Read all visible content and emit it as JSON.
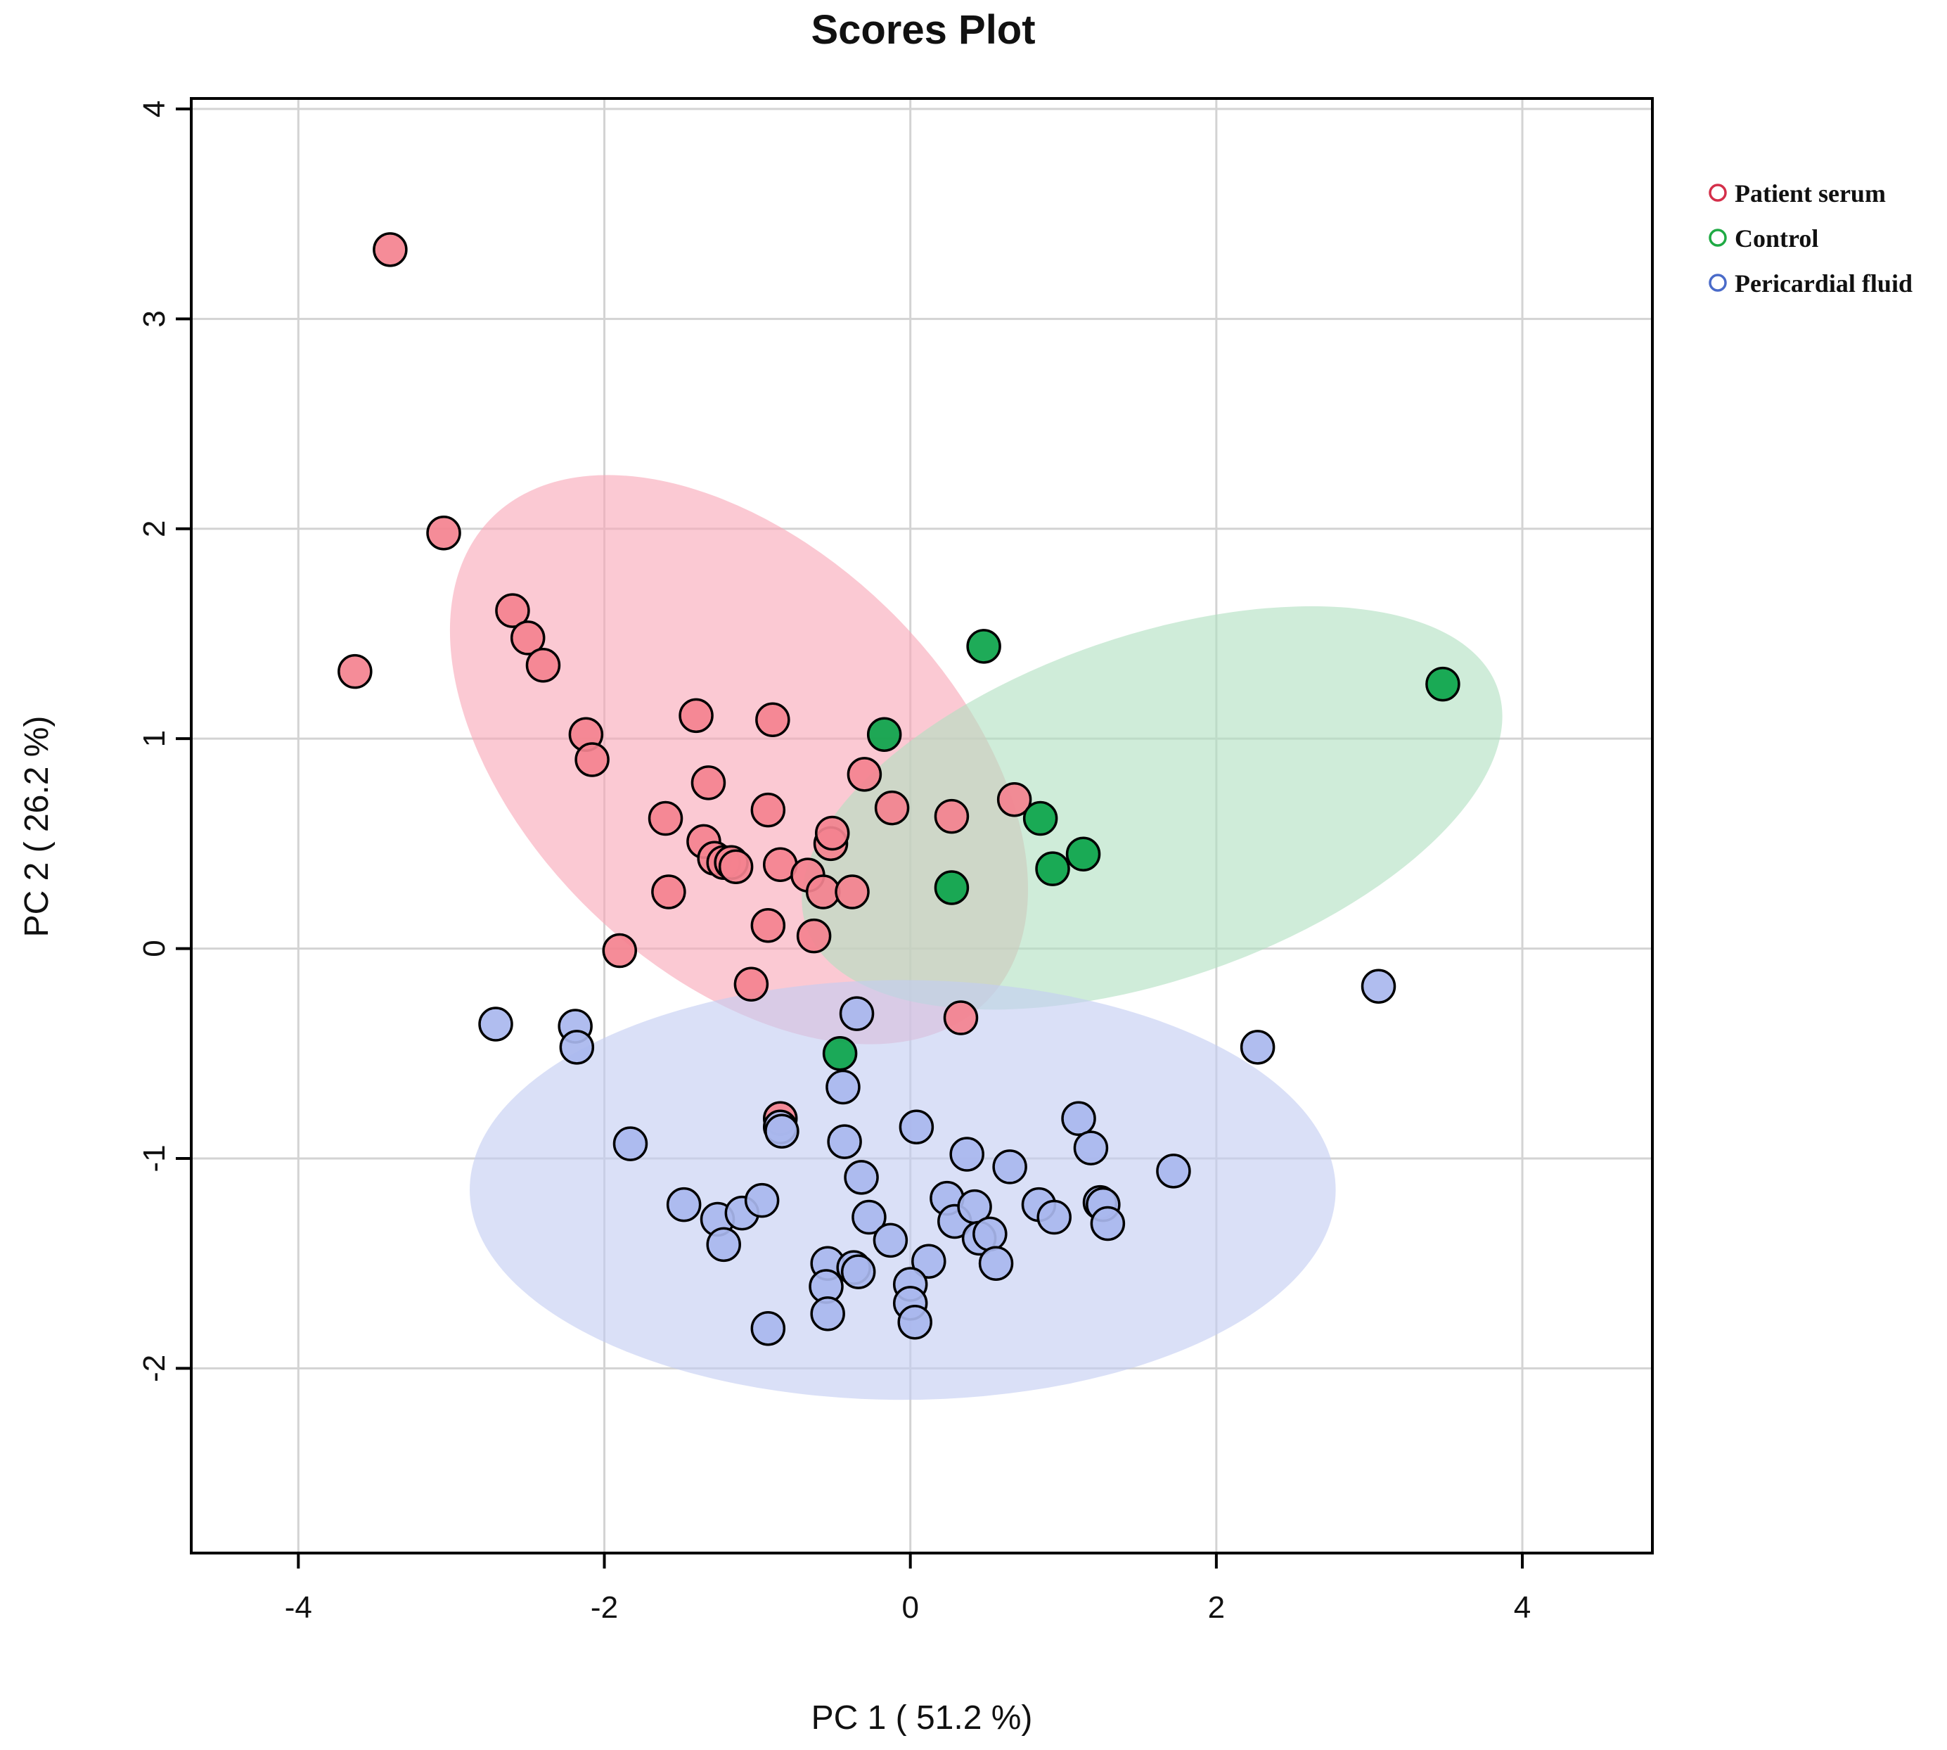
{
  "chart_data": {
    "type": "scatter",
    "title": "Scores Plot",
    "xlabel": "PC 1 ( 51.2 %)",
    "ylabel": "PC 2 ( 26.2 %)",
    "xlim": [
      -4.7,
      4.85
    ],
    "ylim": [
      -2.88,
      4.05
    ],
    "x_ticks": [
      -4,
      -2,
      0,
      2,
      4
    ],
    "y_ticks": [
      -2,
      -1,
      0,
      1,
      2,
      3,
      4
    ],
    "x_tick_labels": [
      "-4",
      "-2",
      "0",
      "2",
      "4"
    ],
    "y_tick_labels": [
      "-2",
      "-1",
      "0",
      "1",
      "2",
      "3",
      "4"
    ],
    "grid": true,
    "legend_position": "right-top",
    "series": [
      {
        "name": "Patient serum",
        "color": "#f4828f",
        "legend_color": "#d42f4a",
        "ellipse_color": "#f8a8b8",
        "ellipse": {
          "cx": -1.12,
          "cy": 0.9,
          "rx": 2.26,
          "ry": 1.01,
          "angle_deg": -44
        },
        "points": [
          [
            -3.4,
            3.33
          ],
          [
            -3.05,
            1.98
          ],
          [
            -3.63,
            1.32
          ],
          [
            -2.6,
            1.61
          ],
          [
            -2.5,
            1.48
          ],
          [
            -2.4,
            1.35
          ],
          [
            -2.12,
            1.02
          ],
          [
            -2.08,
            0.9
          ],
          [
            -1.6,
            0.62
          ],
          [
            -1.58,
            0.27
          ],
          [
            -1.4,
            1.11
          ],
          [
            -1.32,
            0.79
          ],
          [
            -1.35,
            0.51
          ],
          [
            -1.28,
            0.43
          ],
          [
            -1.22,
            0.41
          ],
          [
            -1.17,
            0.41
          ],
          [
            -1.14,
            0.39
          ],
          [
            -0.9,
            1.09
          ],
          [
            -0.93,
            0.66
          ],
          [
            -0.85,
            0.4
          ],
          [
            -0.67,
            0.35
          ],
          [
            -0.57,
            0.27
          ],
          [
            -0.52,
            0.5
          ],
          [
            -0.51,
            0.55
          ],
          [
            -0.38,
            0.27
          ],
          [
            -0.3,
            0.83
          ],
          [
            -0.12,
            0.67
          ],
          [
            -0.93,
            0.11
          ],
          [
            -0.63,
            0.06
          ],
          [
            -1.9,
            -0.01
          ],
          [
            -1.04,
            -0.17
          ],
          [
            0.27,
            0.63
          ],
          [
            0.68,
            0.71
          ],
          [
            0.33,
            -0.33
          ],
          [
            -0.85,
            -0.81
          ]
        ]
      },
      {
        "name": "Control",
        "color": "#0ba44a",
        "legend_color": "#1faa44",
        "ellipse_color": "#b2e0c1",
        "ellipse": {
          "cx": 1.58,
          "cy": 0.67,
          "rx": 2.39,
          "ry": 0.82,
          "angle_deg": 19
        },
        "points": [
          [
            0.48,
            1.44
          ],
          [
            -0.17,
            1.02
          ],
          [
            0.85,
            0.62
          ],
          [
            0.93,
            0.38
          ],
          [
            1.13,
            0.45
          ],
          [
            0.27,
            0.29
          ],
          [
            3.48,
            1.26
          ],
          [
            -0.46,
            -0.5
          ]
        ]
      },
      {
        "name": "Pericardial fluid",
        "color": "#a9b7ee",
        "legend_color": "#4a6bc9",
        "ellipse_color": "#c4cdf2",
        "ellipse": {
          "cx": -0.05,
          "cy": -1.15,
          "rx": 2.83,
          "ry": 1.0,
          "angle_deg": 0
        },
        "points": [
          [
            -2.71,
            -0.36
          ],
          [
            -2.19,
            -0.37
          ],
          [
            -2.18,
            -0.47
          ],
          [
            -1.83,
            -0.93
          ],
          [
            -1.48,
            -1.22
          ],
          [
            -1.26,
            -1.29
          ],
          [
            -1.22,
            -1.41
          ],
          [
            -1.1,
            -1.26
          ],
          [
            -0.97,
            -1.2
          ],
          [
            -0.85,
            -0.85
          ],
          [
            -0.84,
            -0.87
          ],
          [
            -0.93,
            -1.81
          ],
          [
            -0.35,
            -0.31
          ],
          [
            -0.44,
            -0.66
          ],
          [
            -0.43,
            -0.92
          ],
          [
            -0.32,
            -1.09
          ],
          [
            -0.27,
            -1.28
          ],
          [
            -0.13,
            -1.39
          ],
          [
            -0.54,
            -1.5
          ],
          [
            -0.55,
            -1.61
          ],
          [
            -0.54,
            -1.74
          ],
          [
            -0.37,
            -1.52
          ],
          [
            -0.34,
            -1.54
          ],
          [
            0.12,
            -1.49
          ],
          [
            0.0,
            -1.6
          ],
          [
            0.0,
            -1.69
          ],
          [
            0.03,
            -1.78
          ],
          [
            0.04,
            -0.85
          ],
          [
            0.24,
            -1.19
          ],
          [
            0.29,
            -1.3
          ],
          [
            0.37,
            -0.98
          ],
          [
            0.42,
            -1.23
          ],
          [
            0.45,
            -1.38
          ],
          [
            0.52,
            -1.36
          ],
          [
            0.56,
            -1.5
          ],
          [
            0.65,
            -1.04
          ],
          [
            0.84,
            -1.22
          ],
          [
            0.94,
            -1.28
          ],
          [
            1.1,
            -0.81
          ],
          [
            1.18,
            -0.95
          ],
          [
            1.24,
            -1.21
          ],
          [
            1.26,
            -1.22
          ],
          [
            1.29,
            -1.31
          ],
          [
            1.72,
            -1.06
          ],
          [
            2.27,
            -0.47
          ],
          [
            3.06,
            -0.18
          ]
        ]
      }
    ]
  }
}
